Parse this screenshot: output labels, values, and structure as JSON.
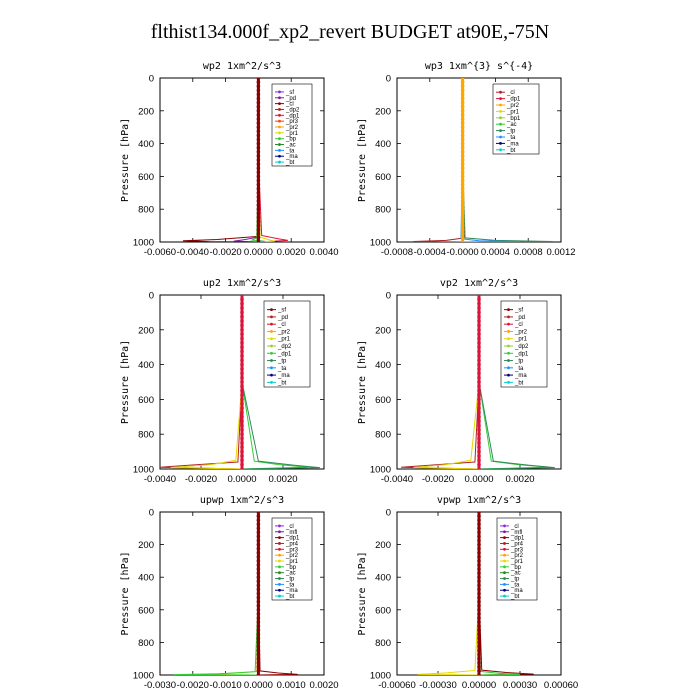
{
  "title": "flthist134.000f_xp2_revert  BUDGET at90E,-75N",
  "chart_data": [
    {
      "type": "line",
      "title": "wp2   1xm^2/s^3",
      "ylabel": "Pressure  [hPa]",
      "xlim": [
        -0.006,
        0.004
      ],
      "ylim": [
        1000,
        0
      ],
      "x_ticks": [
        "-0.0060",
        "-0.0040",
        "-0.0020",
        "0.0000",
        "0.0020",
        "0.0040"
      ],
      "x_tick_values": [
        -0.006,
        -0.004,
        -0.002,
        0.0,
        0.002,
        0.004
      ],
      "y_ticks": [
        "0",
        "200",
        "400",
        "600",
        "800",
        "1000"
      ],
      "y_tick_values": [
        0,
        200,
        400,
        600,
        800,
        1000
      ],
      "legend": [
        "_sf",
        "_pd",
        "_cl",
        "_dp2",
        "_dp1",
        "_pr3",
        "_pr2",
        "_pr1",
        "_bp",
        "_ac",
        "_ta",
        "_ma",
        "_bt"
      ],
      "colors": [
        "#8a2be2",
        "#7b1fa2",
        "#8b0000",
        "#b22222",
        "#dc143c",
        "#ff4500",
        "#ffa500",
        "#e6d800",
        "#32cd32",
        "#228b22",
        "#1e90ff",
        "#000080",
        "#00ced1"
      ],
      "series": [
        {
          "name": "_sf",
          "x": [
            0.0,
            0.0,
            4e-05,
            -0.0001,
            0.0003,
            0.0
          ],
          "y": [
            0,
            500,
            960,
            990,
            995,
            1000
          ]
        },
        {
          "name": "_pd",
          "x": [
            0.0,
            0.0,
            -5e-05,
            -0.0008,
            -0.0015,
            0.0
          ],
          "y": [
            0,
            500,
            970,
            985,
            995,
            1000
          ]
        },
        {
          "name": "_cl",
          "x": [
            0.0,
            0.0,
            0.0001,
            -0.0025,
            -0.0046,
            -0.003,
            0.0
          ],
          "y": [
            0,
            500,
            965,
            985,
            992,
            998,
            1000
          ]
        },
        {
          "name": "_dp1",
          "x": [
            0.0,
            0.0,
            0.0002,
            0.0012,
            0.0018,
            0.0
          ],
          "y": [
            0,
            500,
            960,
            980,
            990,
            1000
          ]
        },
        {
          "name": "_pr1",
          "x": [
            0.0,
            0.0,
            0.0001,
            0.0006,
            0.001,
            0.0
          ],
          "y": [
            0,
            500,
            970,
            985,
            995,
            1000
          ]
        },
        {
          "name": "_bp",
          "x": [
            0.0,
            0.0,
            -0.0001,
            -0.0004,
            0.0004,
            0.0
          ],
          "y": [
            0,
            500,
            975,
            988,
            996,
            1000
          ]
        }
      ]
    },
    {
      "type": "line",
      "title": "wp3   1xm^{3} s^{-4}",
      "ylabel": "Pressure  [hPa]",
      "xlim": [
        -0.0008,
        0.0012
      ],
      "ylim": [
        1000,
        0
      ],
      "x_ticks": [
        "-0.0008",
        "-0.0004",
        "-0.0000",
        "0.0004",
        "0.0008",
        "0.0012"
      ],
      "x_tick_values": [
        -0.0008,
        -0.0004,
        0.0,
        0.0004,
        0.0008,
        0.0012
      ],
      "y_ticks": [
        "0",
        "200",
        "400",
        "600",
        "800",
        "1000"
      ],
      "y_tick_values": [
        0,
        200,
        400,
        600,
        800,
        1000
      ],
      "legend": [
        "_cl",
        "_dp1",
        "_pr2",
        "_pr1",
        "_bp1",
        "_ac",
        "_tp",
        "_ta",
        "_ma",
        "_bt"
      ],
      "colors": [
        "#b22222",
        "#dc143c",
        "#ffa500",
        "#e6d800",
        "#9acd32",
        "#32cd32",
        "#2e8b57",
        "#1e90ff",
        "#000080",
        "#00ced1"
      ],
      "series": [
        {
          "name": "_cl",
          "x": [
            0.0,
            0.0,
            2e-05,
            -0.0002,
            -0.0006,
            0.0
          ],
          "y": [
            0,
            500,
            975,
            990,
            997,
            1000
          ]
        },
        {
          "name": "_tp",
          "x": [
            0.0,
            0.0,
            3e-05,
            0.0004,
            0.0011,
            0.0
          ],
          "y": [
            0,
            500,
            975,
            990,
            997,
            1000
          ]
        },
        {
          "name": "_ta",
          "x": [
            0.0,
            0.0,
            -2e-05,
            0.0002,
            0.0007,
            0.0
          ],
          "y": [
            0,
            500,
            980,
            992,
            998,
            1000
          ]
        }
      ]
    },
    {
      "type": "line",
      "title": "up2   1xm^2/s^3",
      "ylabel": "Pressure  [hPa]",
      "xlim": [
        -0.004,
        0.004
      ],
      "ylim": [
        1000,
        0
      ],
      "x_ticks": [
        "-0.0040",
        "-0.0020",
        "0.0000",
        "0.0020"
      ],
      "x_tick_values": [
        -0.004,
        -0.002,
        0.0,
        0.002
      ],
      "y_ticks": [
        "0",
        "200",
        "400",
        "600",
        "800",
        "1000"
      ],
      "y_tick_values": [
        0,
        200,
        400,
        600,
        800,
        1000
      ],
      "legend": [
        "_sf",
        "_pd",
        "_cl",
        "_pr2",
        "_pr1",
        "_dp2",
        "_dp1",
        "_tp",
        "_ta",
        "_ma",
        "_bt"
      ],
      "colors": [
        "#8b0000",
        "#b22222",
        "#dc143c",
        "#ffa500",
        "#e6d800",
        "#9acd32",
        "#32cd32",
        "#2e8b57",
        "#1e90ff",
        "#000080",
        "#00ced1"
      ],
      "series": [
        {
          "name": "_pd",
          "x": [
            0.0,
            0.0,
            -0.0002,
            -0.0028,
            -0.004,
            0.0
          ],
          "y": [
            0,
            500,
            960,
            980,
            990,
            1000
          ]
        },
        {
          "name": "_pr1",
          "x": [
            0.0,
            0.0,
            -0.0003,
            -0.0015,
            -0.0035,
            0.0
          ],
          "y": [
            0,
            500,
            950,
            975,
            992,
            1000
          ]
        },
        {
          "name": "_dp1",
          "x": [
            0.0,
            0.0,
            0.0006,
            0.0018,
            0.0032,
            0.0
          ],
          "y": [
            0,
            500,
            955,
            975,
            990,
            1000
          ]
        },
        {
          "name": "_tp",
          "x": [
            0.0,
            0.0,
            0.0008,
            0.0025,
            0.0038,
            0.0
          ],
          "y": [
            0,
            500,
            955,
            978,
            992,
            1000
          ]
        }
      ]
    },
    {
      "type": "line",
      "title": "vp2   1xm^2/s^3",
      "ylabel": "Pressure  [hPa]",
      "xlim": [
        -0.004,
        0.004
      ],
      "ylim": [
        1000,
        0
      ],
      "x_ticks": [
        "-0.0040",
        "-0.0020",
        "0.0000",
        "0.0020"
      ],
      "x_tick_values": [
        -0.004,
        -0.002,
        0.0,
        0.002
      ],
      "y_ticks": [
        "0",
        "200",
        "400",
        "600",
        "800",
        "1000"
      ],
      "y_tick_values": [
        0,
        200,
        400,
        600,
        800,
        1000
      ],
      "legend": [
        "_sf",
        "_pd",
        "_cl",
        "_pr2",
        "_pr1",
        "_dp2",
        "_dp1",
        "_tp",
        "_ta",
        "_ma",
        "_bt"
      ],
      "colors": [
        "#8b0000",
        "#b22222",
        "#dc143c",
        "#ffa500",
        "#e6d800",
        "#9acd32",
        "#32cd32",
        "#2e8b57",
        "#1e90ff",
        "#000080",
        "#00ced1"
      ],
      "series": [
        {
          "name": "_pd",
          "x": [
            0.0,
            0.0,
            -0.0002,
            -0.0026,
            -0.0038,
            0.0
          ],
          "y": [
            0,
            500,
            960,
            980,
            990,
            1000
          ]
        },
        {
          "name": "_pr1",
          "x": [
            0.0,
            0.0,
            -0.0004,
            -0.0016,
            -0.0032,
            0.0
          ],
          "y": [
            0,
            500,
            950,
            975,
            992,
            1000
          ]
        },
        {
          "name": "_dp1",
          "x": [
            0.0,
            0.0,
            0.0006,
            0.0019,
            0.0034,
            0.0
          ],
          "y": [
            0,
            500,
            955,
            975,
            990,
            1000
          ]
        },
        {
          "name": "_tp",
          "x": [
            0.0,
            0.0,
            0.0007,
            0.0024,
            0.0037,
            0.0
          ],
          "y": [
            0,
            500,
            955,
            978,
            992,
            1000
          ]
        }
      ]
    },
    {
      "type": "line",
      "title": "upwp   1xm^2/s^3",
      "ylabel": "Pressure  [hPa]",
      "xlim": [
        -0.003,
        0.002
      ],
      "ylim": [
        1000,
        0
      ],
      "x_ticks": [
        "-0.0030",
        "-0.0020",
        "-0.0010",
        "0.0000",
        "0.0010",
        "0.0020"
      ],
      "x_tick_values": [
        -0.003,
        -0.002,
        -0.001,
        0.0,
        0.001,
        0.002
      ],
      "y_ticks": [
        "0",
        "200",
        "400",
        "600",
        "800",
        "1000"
      ],
      "y_tick_values": [
        0,
        200,
        400,
        600,
        800,
        1000
      ],
      "legend": [
        "_cl",
        "_mfl",
        "_dp1",
        "_pr4",
        "_pr3",
        "_pr2",
        "_pr1",
        "_bp",
        "_ac",
        "_tp",
        "_ta",
        "_ma",
        "_bt"
      ],
      "colors": [
        "#8a2be2",
        "#7b1fa2",
        "#8b0000",
        "#b22222",
        "#dc143c",
        "#ffa500",
        "#e6d800",
        "#32cd32",
        "#228b22",
        "#2e8b57",
        "#1e90ff",
        "#000080",
        "#00ced1"
      ],
      "series": [
        {
          "name": "_dp1",
          "x": [
            0.0,
            0.0,
            5e-05,
            0.0006,
            0.0012,
            0.0
          ],
          "y": [
            0,
            500,
            975,
            988,
            996,
            1000
          ]
        },
        {
          "name": "_pr1",
          "x": [
            0.0,
            0.0,
            -5e-05,
            -0.0008,
            -0.0018,
            0.0
          ],
          "y": [
            0,
            500,
            978,
            990,
            997,
            1000
          ]
        },
        {
          "name": "_bp",
          "x": [
            0.0,
            0.0,
            -0.0001,
            -0.0012,
            -0.0026,
            0.0
          ],
          "y": [
            0,
            500,
            980,
            992,
            998,
            1000
          ]
        }
      ]
    },
    {
      "type": "line",
      "title": "vpwp   1xm^2/s^3",
      "ylabel": "Pressure  [hPa]",
      "xlim": [
        -0.0006,
        0.0006
      ],
      "ylim": [
        1000,
        0
      ],
      "x_ticks": [
        "-0.00060",
        "-0.00030",
        "0.00000",
        "0.00030",
        "0.00060"
      ],
      "x_tick_values": [
        -0.0006,
        -0.0003,
        0.0,
        0.0003,
        0.0006
      ],
      "y_ticks": [
        "0",
        "200",
        "400",
        "600",
        "800",
        "1000"
      ],
      "y_tick_values": [
        0,
        200,
        400,
        600,
        800,
        1000
      ],
      "legend": [
        "_cl",
        "_mfl",
        "_dp1",
        "_pr4",
        "_pr3",
        "_pr2",
        "_pr1",
        "_bp",
        "_ac",
        "_tp",
        "_ta",
        "_ma",
        "_bt"
      ],
      "colors": [
        "#8a2be2",
        "#7b1fa2",
        "#8b0000",
        "#b22222",
        "#dc143c",
        "#ffa500",
        "#e6d800",
        "#32cd32",
        "#228b22",
        "#2e8b57",
        "#1e90ff",
        "#000080",
        "#00ced1"
      ],
      "series": [
        {
          "name": "_dp1",
          "x": [
            0.0,
            0.0,
            2e-05,
            0.0002,
            0.0004,
            0.0
          ],
          "y": [
            0,
            500,
            970,
            985,
            995,
            1000
          ]
        },
        {
          "name": "_pr1",
          "x": [
            0.0,
            0.0,
            -3e-05,
            -0.00025,
            -0.00045,
            0.0
          ],
          "y": [
            0,
            500,
            972,
            988,
            996,
            1000
          ]
        },
        {
          "name": "_bp",
          "x": [
            0.0,
            0.0,
            1e-05,
            0.00015,
            0.0003,
            0.0
          ],
          "y": [
            0,
            500,
            978,
            990,
            997,
            1000
          ]
        }
      ]
    }
  ]
}
